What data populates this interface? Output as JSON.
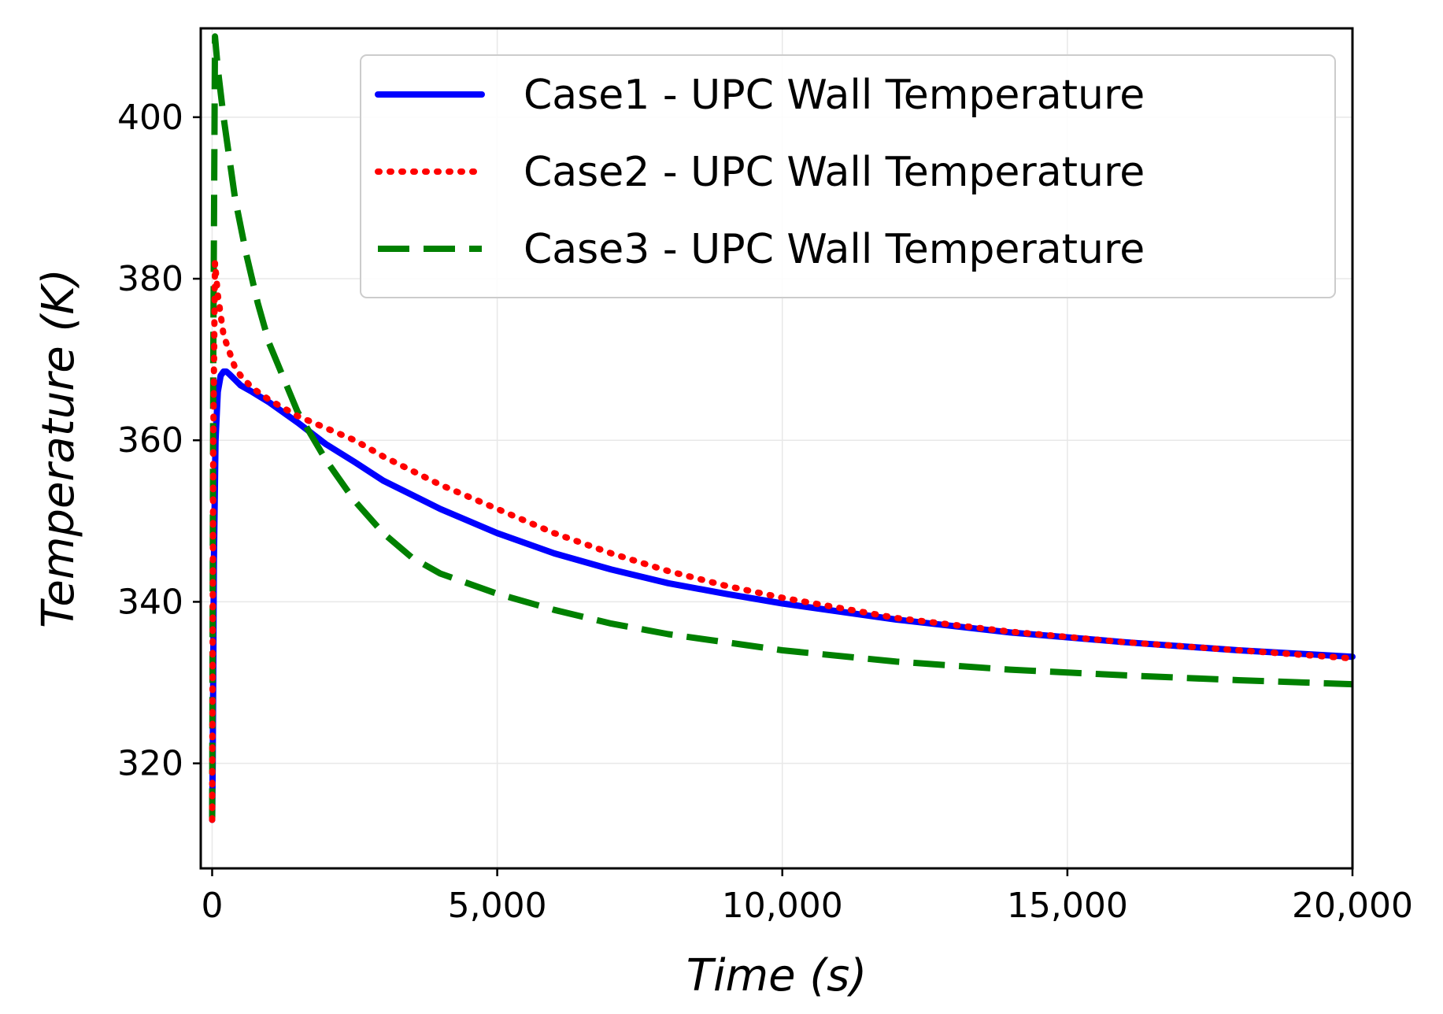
{
  "chart_data": {
    "type": "line",
    "title": "",
    "xlabel": "Time (s)",
    "ylabel": "Temperature (K)",
    "xlim": [
      -200,
      20000
    ],
    "ylim": [
      307,
      411
    ],
    "xticks": [
      0,
      5000,
      10000,
      15000,
      20000
    ],
    "xtick_labels": [
      "0",
      "5,000",
      "10,000",
      "15,000",
      "20,000"
    ],
    "yticks": [
      320,
      340,
      360,
      380,
      400
    ],
    "ytick_labels": [
      "320",
      "340",
      "360",
      "380",
      "400"
    ],
    "grid": true,
    "legend_position": "top-right",
    "series": [
      {
        "name": "Case1 - UPC Wall Temperature",
        "color": "#0000ff",
        "style": "solid",
        "x": [
          0,
          10,
          30,
          60,
          100,
          150,
          200,
          250,
          300,
          400,
          500,
          700,
          1000,
          1500,
          2000,
          2500,
          3000,
          4000,
          5000,
          6000,
          7000,
          8000,
          9000,
          10000,
          12000,
          14000,
          16000,
          18000,
          20000
        ],
        "y": [
          313,
          320,
          345,
          360,
          366,
          368,
          368.5,
          368.5,
          368.2,
          367.5,
          366.8,
          366,
          364.7,
          362.2,
          359.5,
          357.3,
          355,
          351.5,
          348.5,
          346,
          344,
          342.3,
          341,
          339.8,
          337.8,
          336.2,
          335,
          334,
          333.2
        ]
      },
      {
        "name": "Case2 - UPC Wall Temperature",
        "color": "#ff0000",
        "style": "dotted",
        "x": [
          0,
          20,
          50,
          100,
          200,
          300,
          400,
          500,
          700,
          1000,
          1500,
          2000,
          2500,
          3000,
          4000,
          5000,
          6000,
          7000,
          8000,
          9000,
          10000,
          12000,
          14000,
          16000,
          18000,
          20000
        ],
        "y": [
          313,
          360,
          382,
          378,
          373,
          371,
          369,
          368,
          366.5,
          365,
          363,
          361.5,
          360,
          358,
          354.5,
          351.5,
          348.5,
          346,
          343.8,
          342,
          340.5,
          338,
          336.3,
          335,
          334,
          333
        ]
      },
      {
        "name": "Case3 - UPC Wall Temperature",
        "color": "#008000",
        "style": "dashed",
        "x": [
          0,
          20,
          50,
          100,
          200,
          400,
          600,
          800,
          1000,
          1500,
          2000,
          2500,
          3000,
          3500,
          4000,
          5000,
          6000,
          7000,
          8000,
          9000,
          10000,
          12000,
          14000,
          16000,
          18000,
          20000
        ],
        "y": [
          313,
          370,
          410,
          406,
          400,
          390,
          383,
          377,
          372,
          363.5,
          357.5,
          352.5,
          348.5,
          345.5,
          343.5,
          341,
          339,
          337.3,
          336,
          335,
          334,
          332.6,
          331.6,
          330.9,
          330.3,
          329.8
        ]
      }
    ]
  }
}
